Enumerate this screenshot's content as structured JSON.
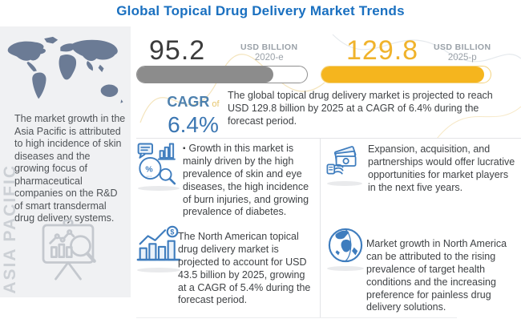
{
  "title": "Global Topical Drug Delivery Market Trends",
  "stats": {
    "current": {
      "value": "95.2",
      "unit": "USD BILLION",
      "year": "2020-e",
      "fill_pct": 80
    },
    "projected": {
      "value": "129.8",
      "unit": "USD BILLION",
      "year": "2025-p",
      "fill_pct": 96
    }
  },
  "cagr": {
    "label": "CAGR",
    "connector": "of",
    "value": "6.4%"
  },
  "summary": "The global topical drug delivery market is projected to reach USD 129.8 billion by 2025 at a CAGR of 6.4% during the forecast period.",
  "sidebar": {
    "region_label": "ASIA PACIFIC",
    "text": "The market growth in the Asia Pacific is attributed to high incidence of skin diseases and the growing focus of pharmaceutical companies on the R&D of smart transdermal drug delivery systems."
  },
  "insights": [
    {
      "icon": "market-analysis-icon",
      "bullet": "▪",
      "text": "Growth in this market is mainly driven by the high prevalence of skin and eye diseases, the high incidence of burn injuries, and growing prevalence of diabetes."
    },
    {
      "icon": "growth-chart-icon",
      "text": "The North American topical drug delivery market is projected to account for USD 43.5 billion by 2025, growing at a CAGR of 5.4% during the forecast period."
    },
    {
      "icon": "money-hand-icon",
      "text": "Expansion, acquisition, and partnerships would offer lucrative opportunities for market players in the next five years."
    },
    {
      "icon": "globe-icon",
      "text": "Market growth in North America can be attributed to the rising prevalence of target health conditions and the increasing preference for painless drug delivery solutions."
    }
  ],
  "colors": {
    "title_blue": "#1a70c0",
    "accent_blue": "#3f7dbe",
    "gold": "#f5b51e",
    "gray_bar": "#8c8c8c",
    "text_dark": "#3f4245",
    "label_gray": "#9aa1a8"
  }
}
